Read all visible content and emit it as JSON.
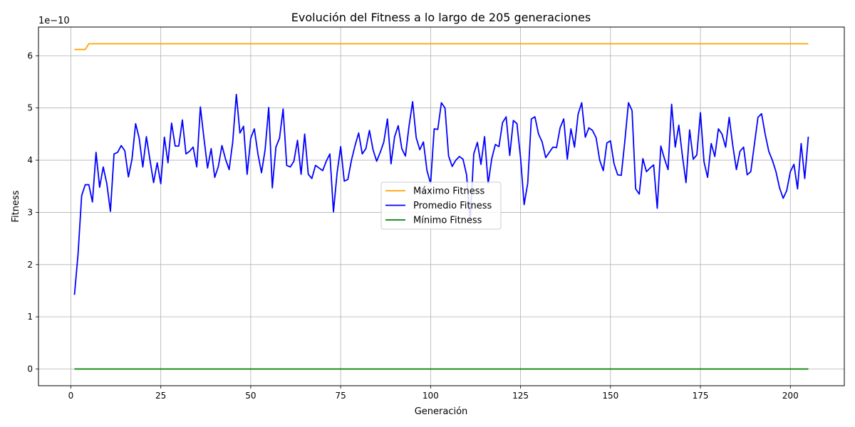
{
  "chart_data": {
    "type": "line",
    "title": "Evolución del Fitness a lo largo de 205 generaciones",
    "xlabel": "Generación",
    "ylabel": "Fitness",
    "y_offset_text": "1e−10",
    "y_scale_note": "values in units of 1e-10",
    "xlim": [
      -9,
      215
    ],
    "ylim": [
      -0.32,
      6.55
    ],
    "xticks": [
      0,
      25,
      50,
      75,
      100,
      125,
      150,
      175,
      200
    ],
    "yticks": [
      0,
      1,
      2,
      3,
      4,
      5,
      6
    ],
    "grid": true,
    "legend_position": "center-right",
    "series": [
      {
        "name": "Máximo Fitness",
        "color": "#ffa500",
        "x": [
          1,
          4,
          5,
          205
        ],
        "values": [
          6.12,
          6.12,
          6.23,
          6.23
        ]
      },
      {
        "name": "Promedio Fitness",
        "color": "#0000ff",
        "x": [
          1,
          2,
          3,
          4,
          5,
          6,
          7,
          8,
          9,
          10,
          11,
          12,
          13,
          14,
          15,
          16,
          17,
          18,
          19,
          20,
          21,
          22,
          23,
          24,
          25,
          26,
          27,
          28,
          29,
          30,
          31,
          32,
          33,
          34,
          35,
          36,
          37,
          38,
          39,
          40,
          41,
          42,
          43,
          44,
          45,
          46,
          47,
          48,
          49,
          50,
          51,
          52,
          53,
          54,
          55,
          56,
          57,
          58,
          59,
          60,
          61,
          62,
          63,
          64,
          65,
          66,
          67,
          68,
          69,
          70,
          71,
          72,
          73,
          74,
          75,
          76,
          77,
          78,
          79,
          80,
          81,
          82,
          83,
          84,
          85,
          86,
          87,
          88,
          89,
          90,
          91,
          92,
          93,
          94,
          95,
          96,
          97,
          98,
          99,
          100,
          101,
          102,
          103,
          104,
          105,
          106,
          107,
          108,
          109,
          110,
          111,
          112,
          113,
          114,
          115,
          116,
          117,
          118,
          119,
          120,
          121,
          122,
          123,
          124,
          125,
          126,
          127,
          128,
          129,
          130,
          131,
          132,
          133,
          134,
          135,
          136,
          137,
          138,
          139,
          140,
          141,
          142,
          143,
          144,
          145,
          146,
          147,
          148,
          149,
          150,
          151,
          152,
          153,
          154,
          155,
          156,
          157,
          158,
          159,
          160,
          161,
          162,
          163,
          164,
          165,
          166,
          167,
          168,
          169,
          170,
          171,
          172,
          173,
          174,
          175,
          176,
          177,
          178,
          179,
          180,
          181,
          182,
          183,
          184,
          185,
          186,
          187,
          188,
          189,
          190,
          191,
          192,
          193,
          194,
          195,
          196,
          197,
          198,
          199,
          200,
          201,
          202,
          203,
          204,
          205
        ],
        "values": [
          1.42,
          2.2,
          3.32,
          3.53,
          3.53,
          3.2,
          4.15,
          3.48,
          3.87,
          3.55,
          3.02,
          4.12,
          4.15,
          4.28,
          4.18,
          3.68,
          4.02,
          4.7,
          4.42,
          3.87,
          4.45,
          4.0,
          3.57,
          3.95,
          3.55,
          4.44,
          3.95,
          4.71,
          4.27,
          4.27,
          4.77,
          4.12,
          4.17,
          4.25,
          3.87,
          5.02,
          4.42,
          3.85,
          4.22,
          3.67,
          3.88,
          4.28,
          4.02,
          3.82,
          4.35,
          5.26,
          4.52,
          4.65,
          3.73,
          4.42,
          4.6,
          4.12,
          3.76,
          4.2,
          5.01,
          3.47,
          4.25,
          4.42,
          4.98,
          3.9,
          3.87,
          3.98,
          4.38,
          3.73,
          4.5,
          3.73,
          3.65,
          3.9,
          3.85,
          3.8,
          3.98,
          4.12,
          3.01,
          3.75,
          4.26,
          3.6,
          3.63,
          4.0,
          4.28,
          4.52,
          4.12,
          4.22,
          4.57,
          4.2,
          3.98,
          4.15,
          4.35,
          4.79,
          3.93,
          4.45,
          4.66,
          4.22,
          4.08,
          4.65,
          5.12,
          4.43,
          4.2,
          4.35,
          3.8,
          3.55,
          4.6,
          4.59,
          5.1,
          5.0,
          4.08,
          3.88,
          4.0,
          4.07,
          4.02,
          3.72,
          2.85,
          4.12,
          4.34,
          3.92,
          4.45,
          3.55,
          4.03,
          4.3,
          4.26,
          4.72,
          4.83,
          4.09,
          4.76,
          4.7,
          4.05,
          3.15,
          3.56,
          4.79,
          4.83,
          4.5,
          4.35,
          4.05,
          4.15,
          4.25,
          4.24,
          4.62,
          4.79,
          4.02,
          4.6,
          4.25,
          4.88,
          5.1,
          4.44,
          4.62,
          4.57,
          4.43,
          4.0,
          3.8,
          4.33,
          4.37,
          3.93,
          3.72,
          3.71,
          4.37,
          5.1,
          4.95,
          3.45,
          3.35,
          4.03,
          3.78,
          3.85,
          3.91,
          3.08,
          4.27,
          4.03,
          3.82,
          5.07,
          4.25,
          4.67,
          4.08,
          3.57,
          4.58,
          4.02,
          4.1,
          4.91,
          3.97,
          3.67,
          4.32,
          4.07,
          4.6,
          4.5,
          4.25,
          4.82,
          4.28,
          3.82,
          4.17,
          4.25,
          3.72,
          3.78,
          4.3,
          4.82,
          4.89,
          4.5,
          4.17,
          4.0,
          3.78,
          3.47,
          3.27,
          3.42,
          3.78,
          3.92,
          3.45,
          4.32,
          3.65,
          4.45
        ]
      },
      {
        "name": "Mínimo Fitness",
        "color": "#008000",
        "x": [
          1,
          205
        ],
        "values": [
          0.0,
          0.0
        ]
      }
    ]
  }
}
